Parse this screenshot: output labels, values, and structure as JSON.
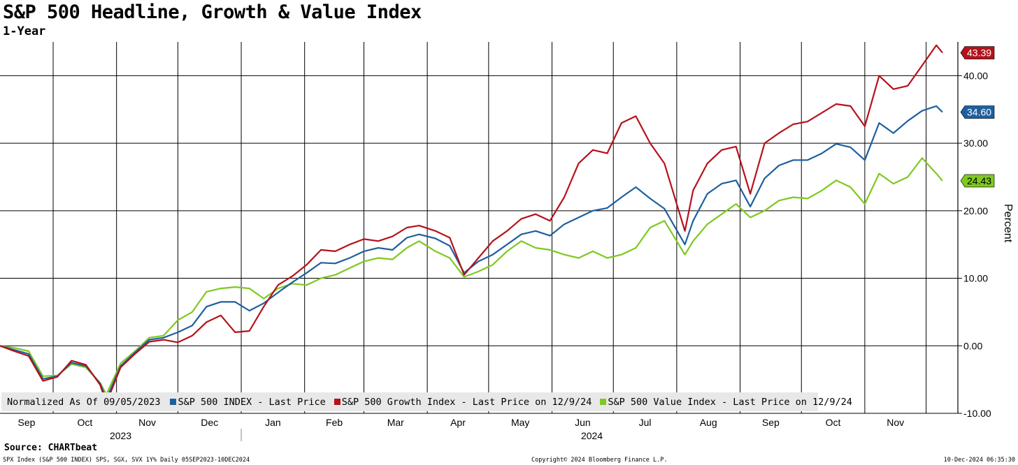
{
  "header": {
    "title": "S&P 500 Headline, Growth & Value Index",
    "subtitle": "1-Year"
  },
  "legend": {
    "intro": "Normalized As Of 09/05/2023",
    "items": [
      {
        "label": "S&P 500 INDEX - Last Price",
        "color": "#1f5f9e"
      },
      {
        "label": "S&P 500 Growth Index - Last Price on 12/9/24",
        "color": "#b5121b"
      },
      {
        "label": "S&P 500 Value Index - Last Price on 12/9/24",
        "color": "#7ec91f"
      }
    ]
  },
  "footer": {
    "source": "Source: CHARTbeat",
    "left": "SPX Index (S&P 500 INDEX) SPS, SGX, SVX 1Y%  Daily 05SEP2023-10DEC2024",
    "center": "Copyright© 2024 Bloomberg Finance L.P.",
    "right": "10-Dec-2024 06:35:30"
  },
  "chart_data": {
    "type": "line",
    "ylabel": "Percent",
    "ylim": [
      -10,
      45
    ],
    "y_ticks": [
      -10,
      0,
      10,
      20,
      30,
      40
    ],
    "y_tick_labels": [
      "-10.00",
      "0.00",
      "10.00",
      "20.00",
      "30.00",
      "40.00"
    ],
    "x_range": [
      "2023-09-05",
      "2024-12-09"
    ],
    "x_month_labels": [
      "Sep",
      "Oct",
      "Nov",
      "Dec",
      "Jan",
      "Feb",
      "Mar",
      "Apr",
      "May",
      "Jun",
      "Jul",
      "Aug",
      "Sep",
      "Oct",
      "Nov"
    ],
    "x_year_labels": [
      "2023",
      "2024"
    ],
    "grid": true,
    "legend_position": "bottom-left",
    "series": [
      {
        "name": "S&P 500 INDEX - Last Price",
        "color": "#1f5f9e",
        "last_label": "34.60",
        "points": [
          [
            "2023-09-05",
            0
          ],
          [
            "2023-09-12",
            -0.6
          ],
          [
            "2023-09-19",
            -1.2
          ],
          [
            "2023-09-26",
            -4.9
          ],
          [
            "2023-10-03",
            -4.5
          ],
          [
            "2023-10-10",
            -2.5
          ],
          [
            "2023-10-17",
            -3.0
          ],
          [
            "2023-10-24",
            -5.6
          ],
          [
            "2023-10-27",
            -7.9
          ],
          [
            "2023-11-03",
            -3.0
          ],
          [
            "2023-11-10",
            -1.0
          ],
          [
            "2023-11-17",
            0.9
          ],
          [
            "2023-11-24",
            1.2
          ],
          [
            "2023-12-01",
            2.0
          ],
          [
            "2023-12-08",
            3.0
          ],
          [
            "2023-12-15",
            5.8
          ],
          [
            "2023-12-22",
            6.5
          ],
          [
            "2023-12-29",
            6.5
          ],
          [
            "2024-01-05",
            5.2
          ],
          [
            "2024-01-12",
            6.3
          ],
          [
            "2024-01-19",
            7.9
          ],
          [
            "2024-01-26",
            9.4
          ],
          [
            "2024-02-02",
            10.8
          ],
          [
            "2024-02-09",
            12.3
          ],
          [
            "2024-02-16",
            12.2
          ],
          [
            "2024-02-23",
            13.0
          ],
          [
            "2024-03-01",
            14.0
          ],
          [
            "2024-03-08",
            14.5
          ],
          [
            "2024-03-15",
            14.2
          ],
          [
            "2024-03-22",
            16.0
          ],
          [
            "2024-03-28",
            16.5
          ],
          [
            "2024-04-05",
            15.9
          ],
          [
            "2024-04-12",
            14.8
          ],
          [
            "2024-04-19",
            10.8
          ],
          [
            "2024-04-26",
            12.5
          ],
          [
            "2024-05-03",
            13.5
          ],
          [
            "2024-05-10",
            15.0
          ],
          [
            "2024-05-17",
            16.5
          ],
          [
            "2024-05-24",
            17.0
          ],
          [
            "2024-05-31",
            16.3
          ],
          [
            "2024-06-07",
            18.0
          ],
          [
            "2024-06-14",
            19.0
          ],
          [
            "2024-06-21",
            20.0
          ],
          [
            "2024-06-28",
            20.4
          ],
          [
            "2024-07-05",
            22.0
          ],
          [
            "2024-07-12",
            23.5
          ],
          [
            "2024-07-19",
            21.8
          ],
          [
            "2024-07-26",
            20.3
          ],
          [
            "2024-08-05",
            15.0
          ],
          [
            "2024-08-09",
            18.5
          ],
          [
            "2024-08-16",
            22.5
          ],
          [
            "2024-08-23",
            24.0
          ],
          [
            "2024-08-30",
            24.5
          ],
          [
            "2024-09-06",
            20.6
          ],
          [
            "2024-09-13",
            24.8
          ],
          [
            "2024-09-20",
            26.7
          ],
          [
            "2024-09-27",
            27.5
          ],
          [
            "2024-10-04",
            27.5
          ],
          [
            "2024-10-11",
            28.5
          ],
          [
            "2024-10-18",
            29.9
          ],
          [
            "2024-10-25",
            29.4
          ],
          [
            "2024-11-01",
            27.5
          ],
          [
            "2024-11-08",
            33.0
          ],
          [
            "2024-11-15",
            31.5
          ],
          [
            "2024-11-22",
            33.3
          ],
          [
            "2024-11-29",
            34.8
          ],
          [
            "2024-12-06",
            35.5
          ],
          [
            "2024-12-09",
            34.6
          ]
        ]
      },
      {
        "name": "S&P 500 Growth Index - Last Price on 12/9/24",
        "color": "#b5121b",
        "last_label": "43.39",
        "points": [
          [
            "2023-09-05",
            0
          ],
          [
            "2023-09-12",
            -0.8
          ],
          [
            "2023-09-19",
            -1.5
          ],
          [
            "2023-09-26",
            -5.2
          ],
          [
            "2023-10-03",
            -4.6
          ],
          [
            "2023-10-10",
            -2.2
          ],
          [
            "2023-10-17",
            -2.8
          ],
          [
            "2023-10-24",
            -5.8
          ],
          [
            "2023-10-27",
            -8.5
          ],
          [
            "2023-11-03",
            -3.2
          ],
          [
            "2023-11-10",
            -1.2
          ],
          [
            "2023-11-17",
            0.6
          ],
          [
            "2023-11-24",
            0.9
          ],
          [
            "2023-12-01",
            0.5
          ],
          [
            "2023-12-08",
            1.5
          ],
          [
            "2023-12-15",
            3.5
          ],
          [
            "2023-12-22",
            4.5
          ],
          [
            "2023-12-29",
            2.0
          ],
          [
            "2024-01-05",
            2.2
          ],
          [
            "2024-01-12",
            5.8
          ],
          [
            "2024-01-19",
            9.0
          ],
          [
            "2024-01-26",
            10.3
          ],
          [
            "2024-02-02",
            12.0
          ],
          [
            "2024-02-09",
            14.2
          ],
          [
            "2024-02-16",
            14.0
          ],
          [
            "2024-02-23",
            15.0
          ],
          [
            "2024-03-01",
            15.8
          ],
          [
            "2024-03-08",
            15.5
          ],
          [
            "2024-03-15",
            16.2
          ],
          [
            "2024-03-22",
            17.5
          ],
          [
            "2024-03-28",
            17.8
          ],
          [
            "2024-04-05",
            17.0
          ],
          [
            "2024-04-12",
            16.0
          ],
          [
            "2024-04-19",
            10.5
          ],
          [
            "2024-04-26",
            13.0
          ],
          [
            "2024-05-03",
            15.5
          ],
          [
            "2024-05-10",
            17.0
          ],
          [
            "2024-05-17",
            18.8
          ],
          [
            "2024-05-24",
            19.5
          ],
          [
            "2024-05-31",
            18.5
          ],
          [
            "2024-06-07",
            22.0
          ],
          [
            "2024-06-14",
            27.0
          ],
          [
            "2024-06-21",
            29.0
          ],
          [
            "2024-06-28",
            28.5
          ],
          [
            "2024-07-05",
            33.0
          ],
          [
            "2024-07-12",
            34.0
          ],
          [
            "2024-07-19",
            30.0
          ],
          [
            "2024-07-26",
            27.0
          ],
          [
            "2024-08-05",
            17.0
          ],
          [
            "2024-08-09",
            23.0
          ],
          [
            "2024-08-16",
            27.0
          ],
          [
            "2024-08-23",
            29.0
          ],
          [
            "2024-08-30",
            29.5
          ],
          [
            "2024-09-06",
            22.5
          ],
          [
            "2024-09-13",
            30.0
          ],
          [
            "2024-09-20",
            31.5
          ],
          [
            "2024-09-27",
            32.8
          ],
          [
            "2024-10-04",
            33.2
          ],
          [
            "2024-10-11",
            34.5
          ],
          [
            "2024-10-18",
            35.8
          ],
          [
            "2024-10-25",
            35.5
          ],
          [
            "2024-11-01",
            32.5
          ],
          [
            "2024-11-08",
            40.0
          ],
          [
            "2024-11-15",
            38.0
          ],
          [
            "2024-11-22",
            38.5
          ],
          [
            "2024-11-29",
            41.5
          ],
          [
            "2024-12-06",
            44.5
          ],
          [
            "2024-12-09",
            43.39
          ]
        ]
      },
      {
        "name": "S&P 500 Value Index - Last Price on 12/9/24",
        "color": "#7ec91f",
        "last_label": "24.43",
        "points": [
          [
            "2023-09-05",
            0
          ],
          [
            "2023-09-12",
            -0.3
          ],
          [
            "2023-09-19",
            -0.8
          ],
          [
            "2023-09-26",
            -4.5
          ],
          [
            "2023-10-03",
            -4.4
          ],
          [
            "2023-10-10",
            -2.7
          ],
          [
            "2023-10-17",
            -3.2
          ],
          [
            "2023-10-24",
            -5.5
          ],
          [
            "2023-10-27",
            -7.2
          ],
          [
            "2023-11-03",
            -2.6
          ],
          [
            "2023-11-10",
            -0.8
          ],
          [
            "2023-11-17",
            1.2
          ],
          [
            "2023-11-24",
            1.5
          ],
          [
            "2023-12-01",
            3.8
          ],
          [
            "2023-12-08",
            5.0
          ],
          [
            "2023-12-15",
            8.0
          ],
          [
            "2023-12-22",
            8.5
          ],
          [
            "2023-12-29",
            8.7
          ],
          [
            "2024-01-05",
            8.5
          ],
          [
            "2024-01-12",
            7.0
          ],
          [
            "2024-01-19",
            8.5
          ],
          [
            "2024-01-26",
            9.2
          ],
          [
            "2024-02-02",
            9.0
          ],
          [
            "2024-02-09",
            10.0
          ],
          [
            "2024-02-16",
            10.5
          ],
          [
            "2024-02-23",
            11.5
          ],
          [
            "2024-03-01",
            12.5
          ],
          [
            "2024-03-08",
            13.0
          ],
          [
            "2024-03-15",
            12.8
          ],
          [
            "2024-03-22",
            14.5
          ],
          [
            "2024-03-28",
            15.5
          ],
          [
            "2024-04-05",
            14.0
          ],
          [
            "2024-04-12",
            13.0
          ],
          [
            "2024-04-19",
            10.2
          ],
          [
            "2024-04-26",
            11.0
          ],
          [
            "2024-05-03",
            12.0
          ],
          [
            "2024-05-10",
            14.0
          ],
          [
            "2024-05-17",
            15.5
          ],
          [
            "2024-05-24",
            14.5
          ],
          [
            "2024-05-31",
            14.2
          ],
          [
            "2024-06-07",
            13.5
          ],
          [
            "2024-06-14",
            13.0
          ],
          [
            "2024-06-21",
            14.0
          ],
          [
            "2024-06-28",
            13.0
          ],
          [
            "2024-07-05",
            13.5
          ],
          [
            "2024-07-12",
            14.5
          ],
          [
            "2024-07-19",
            17.5
          ],
          [
            "2024-07-26",
            18.5
          ],
          [
            "2024-08-05",
            13.5
          ],
          [
            "2024-08-09",
            15.5
          ],
          [
            "2024-08-16",
            18.0
          ],
          [
            "2024-08-23",
            19.5
          ],
          [
            "2024-08-30",
            21.0
          ],
          [
            "2024-09-06",
            19.0
          ],
          [
            "2024-09-13",
            20.0
          ],
          [
            "2024-09-20",
            21.5
          ],
          [
            "2024-09-27",
            22.0
          ],
          [
            "2024-10-04",
            21.8
          ],
          [
            "2024-10-11",
            23.0
          ],
          [
            "2024-10-18",
            24.5
          ],
          [
            "2024-10-25",
            23.5
          ],
          [
            "2024-11-01",
            21.0
          ],
          [
            "2024-11-08",
            25.5
          ],
          [
            "2024-11-15",
            24.0
          ],
          [
            "2024-11-22",
            25.0
          ],
          [
            "2024-11-29",
            27.8
          ],
          [
            "2024-12-06",
            25.5
          ],
          [
            "2024-12-09",
            24.43
          ]
        ]
      }
    ]
  }
}
